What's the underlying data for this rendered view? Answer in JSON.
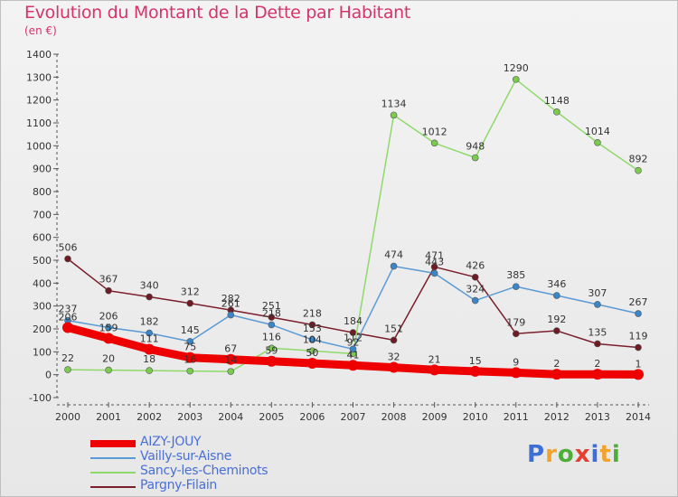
{
  "title": "Evolution du Montant de la Dette par Habitant",
  "subtitle": "(en €)",
  "logo": {
    "text": "Proxiti",
    "colors": [
      "#3d6fd6",
      "#f2a32c",
      "#4fae3a",
      "#e4402f",
      "#3d6fd6",
      "#f2a32c",
      "#4fae3a"
    ]
  },
  "chart_data": {
    "type": "line",
    "x": [
      "2000",
      "2001",
      "2002",
      "2003",
      "2004",
      "2005",
      "2006",
      "2007",
      "2008",
      "2009",
      "2010",
      "2011",
      "2012",
      "2013",
      "2014"
    ],
    "ylim": [
      -100,
      1400
    ],
    "yticks": [
      -100,
      0,
      100,
      200,
      300,
      400,
      500,
      600,
      700,
      800,
      900,
      1000,
      1100,
      1200,
      1300,
      1400
    ],
    "grid": false,
    "legend_position": "bottom-left",
    "series": [
      {
        "name": "AIZY-JOUY",
        "color": "#ee0000",
        "marker": "#ee0000",
        "line_width": 9,
        "marker_r": 6,
        "values": [
          206,
          159,
          111,
          75,
          67,
          59,
          50,
          41,
          32,
          21,
          15,
          9,
          2,
          2,
          1
        ],
        "labels": [
          "206",
          "159",
          "111",
          "75",
          "67",
          "59",
          "50",
          "41",
          "32",
          "21",
          "15",
          "9",
          "2",
          "2",
          "1"
        ]
      },
      {
        "name": "Vailly-sur-Aisne",
        "color": "#5b9bd5",
        "marker": "#3b86c8",
        "line_width": 1.5,
        "marker_r": 3.5,
        "values": [
          237,
          206,
          182,
          145,
          261,
          218,
          153,
          112,
          474,
          443,
          324,
          385,
          346,
          307,
          267
        ],
        "labels": [
          "237",
          "206",
          "182",
          "145",
          "261",
          "218",
          "153",
          "112",
          "474",
          "443",
          "324",
          "385",
          "346",
          "307",
          "267"
        ]
      },
      {
        "name": "Sancy-les-Cheminots",
        "color": "#8fd96b",
        "marker": "#7acb4e",
        "line_width": 1.5,
        "marker_r": 3.5,
        "values": [
          22,
          20,
          18,
          16,
          14,
          116,
          104,
          92,
          1134,
          1012,
          948,
          1290,
          1148,
          1014,
          892
        ],
        "labels": [
          "22",
          "20",
          "18",
          "16",
          "14",
          "116",
          "104",
          "92",
          "1134",
          "1012",
          "948",
          "1290",
          "1148",
          "1014",
          "892"
        ]
      },
      {
        "name": "Pargny-Filain",
        "color": "#7a1f2b",
        "marker": "#6e1b24",
        "line_width": 1.5,
        "marker_r": 3.5,
        "values": [
          506,
          367,
          340,
          312,
          282,
          251,
          218,
          184,
          151,
          471,
          426,
          179,
          192,
          135,
          119
        ],
        "labels": [
          "506",
          "367",
          "340",
          "312",
          "282",
          "251",
          "218",
          "184",
          "151",
          "471",
          "426",
          "179",
          "192",
          "135",
          "119"
        ]
      }
    ]
  }
}
